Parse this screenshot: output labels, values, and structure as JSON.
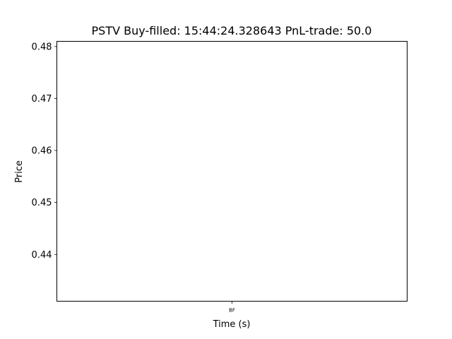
{
  "chart_data": {
    "type": "line",
    "title": "PSTV  Buy-filled:  15:44:24.328643  PnL-trade:  50.0",
    "xlabel": "Time (s)",
    "ylabel": "Price",
    "ylim": [
      0.431,
      0.481
    ],
    "yticks": [
      0.44,
      0.45,
      0.46,
      0.47,
      0.48
    ],
    "ytick_labels": [
      "0.44",
      "0.45",
      "0.46",
      "0.47",
      "0.48"
    ],
    "xticks": [
      {
        "label": "BF",
        "position": 0.5
      }
    ],
    "series": [],
    "grid": false
  }
}
